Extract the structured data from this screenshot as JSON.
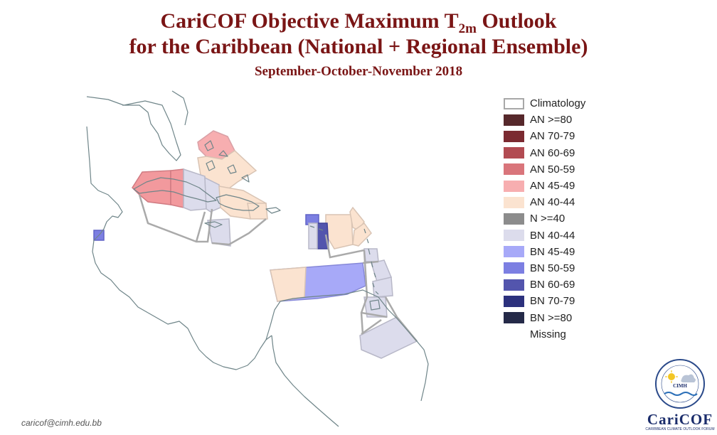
{
  "title": {
    "line1_prefix": "CariCOF Objective Maximum T",
    "line1_subscript": "2m",
    "line1_suffix": " Outlook",
    "line2": "for the Caribbean (National + Regional Ensemble)",
    "period": "September-October-November 2018"
  },
  "legend": [
    {
      "label": "Climatology",
      "color": "#ffffff",
      "outline": "#a8a8a8"
    },
    {
      "label": "AN  >=80",
      "color": "#56282b"
    },
    {
      "label": "AN 70-79",
      "color": "#7b2a31"
    },
    {
      "label": "AN 60-69",
      "color": "#b24b52"
    },
    {
      "label": "AN 50-59",
      "color": "#d9757b"
    },
    {
      "label": "AN 45-49",
      "color": "#f7aeb0"
    },
    {
      "label": "AN 40-44",
      "color": "#fbe3d0"
    },
    {
      "label": "N >=40",
      "color": "#8c8c8c"
    },
    {
      "label": "BN 40-44",
      "color": "#dcdcec"
    },
    {
      "label": "BN 45-49",
      "color": "#a7a9f8"
    },
    {
      "label": "BN 50-59",
      "color": "#7c7fe2"
    },
    {
      "label": "BN 60-69",
      "color": "#5355ad"
    },
    {
      "label": "BN 70-79",
      "color": "#2c317d"
    },
    {
      "label": "BN  >=80",
      "color": "#252a48"
    },
    {
      "label": "Missing",
      "color": "#ffffff",
      "outline": "#ffffff"
    }
  ],
  "map": {
    "coast_color": "#6f8589",
    "border_color": "#aaaaaa"
  },
  "footer": {
    "email": "caricof@cimh.edu.bb"
  },
  "logo": {
    "emblem_text": "CIMH",
    "wordmark": "CariCOF",
    "tagline": "CARIBBEAN CLIMATE OUTLOOK FORUM"
  }
}
